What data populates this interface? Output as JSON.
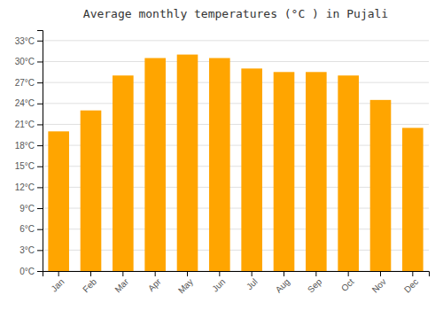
{
  "chart_data": {
    "type": "bar",
    "title": "Average monthly temperatures (°C ) in Pujali",
    "categories": [
      "Jan",
      "Feb",
      "Mar",
      "Apr",
      "May",
      "Jun",
      "Jul",
      "Aug",
      "Sep",
      "Oct",
      "Nov",
      "Dec"
    ],
    "values": [
      20,
      23,
      28,
      30.5,
      31,
      30.5,
      29,
      28.5,
      28.5,
      28,
      24.5,
      20.5
    ],
    "color": "#FFA500",
    "ylim": [
      0,
      34.5
    ],
    "yticks": [
      {
        "value": 0,
        "label": "0°C"
      },
      {
        "value": 3,
        "label": "3°C"
      },
      {
        "value": 6,
        "label": "6°C"
      },
      {
        "value": 9,
        "label": "9°C"
      },
      {
        "value": 12,
        "label": "12°C"
      },
      {
        "value": 15,
        "label": "15°C"
      },
      {
        "value": 18,
        "label": "18°C"
      },
      {
        "value": 21,
        "label": "21°C"
      },
      {
        "value": 24,
        "label": "24°C"
      },
      {
        "value": 27,
        "label": "27°C"
      },
      {
        "value": 30,
        "label": "30°C"
      },
      {
        "value": 33,
        "label": "33°C"
      }
    ],
    "grid": true
  }
}
